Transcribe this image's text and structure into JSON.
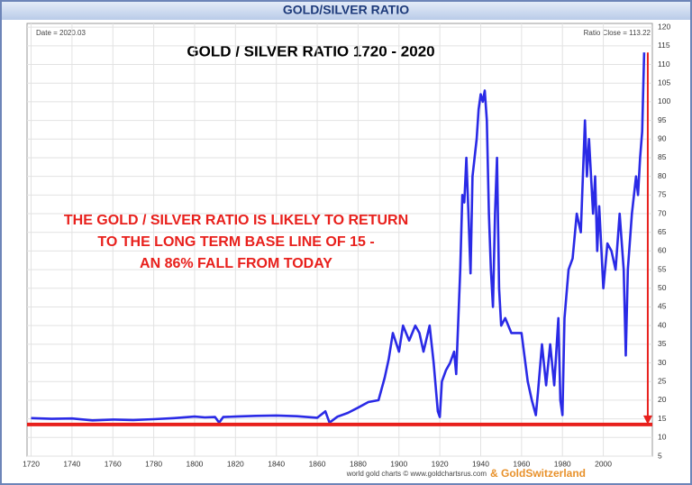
{
  "header": "GOLD/SILVER RATIO",
  "chart_data": {
    "type": "line",
    "title": "GOLD / SILVER RATIO 1720 - 2020",
    "date_label": "Date = 2020.03",
    "close_label": "Ratio Close = 113.22",
    "annotation": [
      "THE GOLD / SILVER RATIO IS LIKELY TO RETURN",
      "TO THE LONG TERM BASE LINE OF 15 -",
      "AN 86% FALL FROM TODAY"
    ],
    "footer": "world gold charts © www.goldchartsrus.com",
    "footer_brand": "& GoldSwitzerland",
    "baseline": 13.5,
    "baseline_color": "#e8201c",
    "grid": true,
    "series": [
      {
        "name": "Gold/Silver Ratio",
        "color": "#2a2ae6",
        "x": [
          1720,
          1730,
          1740,
          1750,
          1760,
          1770,
          1780,
          1790,
          1800,
          1805,
          1810,
          1812,
          1814,
          1820,
          1830,
          1840,
          1850,
          1860,
          1864,
          1866,
          1870,
          1875,
          1880,
          1885,
          1890,
          1893,
          1895,
          1897,
          1900,
          1902,
          1905,
          1908,
          1910,
          1912,
          1915,
          1917,
          1919,
          1920,
          1921,
          1923,
          1925,
          1927,
          1928,
          1930,
          1931,
          1932,
          1933,
          1934,
          1935,
          1936,
          1938,
          1939,
          1940,
          1941,
          1942,
          1943,
          1944,
          1945,
          1946,
          1947,
          1948,
          1949,
          1950,
          1952,
          1955,
          1960,
          1963,
          1965,
          1967,
          1968,
          1970,
          1972,
          1974,
          1976,
          1978,
          1979,
          1980,
          1981,
          1983,
          1985,
          1987,
          1989,
          1990,
          1991,
          1992,
          1993,
          1995,
          1996,
          1997,
          1998,
          2000,
          2002,
          2004,
          2006,
          2008,
          2010,
          2011,
          2012,
          2014,
          2016,
          2017,
          2018,
          2019,
          2020
        ],
        "values": [
          15.2,
          15,
          15.1,
          14.6,
          14.8,
          14.7,
          14.9,
          15.2,
          15.6,
          15.4,
          15.5,
          14,
          15.5,
          15.6,
          15.8,
          15.9,
          15.7,
          15.3,
          17,
          14,
          15.6,
          16.6,
          18,
          19.5,
          20,
          26,
          31,
          38,
          33,
          40,
          36,
          40,
          38,
          33,
          40,
          30,
          17,
          15.5,
          25,
          28,
          30,
          33,
          27,
          55,
          75,
          73,
          85,
          70,
          54,
          80,
          90,
          98,
          102,
          100,
          103,
          95,
          70,
          55,
          45,
          70,
          85,
          50,
          40,
          42,
          38,
          38,
          25,
          20,
          16,
          22,
          35,
          24,
          35,
          24,
          42,
          20,
          16,
          42,
          55,
          58,
          70,
          65,
          80,
          95,
          80,
          90,
          70,
          80,
          60,
          72,
          50,
          62,
          60,
          55,
          70,
          55,
          32,
          55,
          70,
          80,
          75,
          85,
          92,
          113.22
        ]
      }
    ],
    "xlim": [
      1718,
      2024
    ],
    "xticks": [
      1720,
      1740,
      1760,
      1780,
      1800,
      1820,
      1840,
      1860,
      1880,
      1900,
      1920,
      1940,
      1960,
      1980,
      2000
    ],
    "ylim": [
      5,
      121
    ],
    "yticks": [
      5,
      10,
      15,
      20,
      25,
      30,
      35,
      40,
      45,
      50,
      55,
      60,
      65,
      70,
      75,
      80,
      85,
      90,
      95,
      100,
      105,
      110,
      115,
      120
    ]
  }
}
